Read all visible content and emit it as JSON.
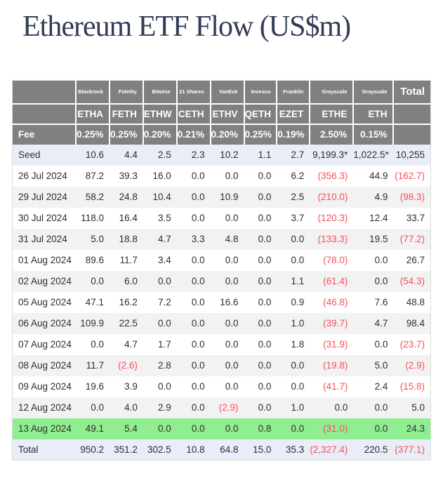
{
  "title": "Ethereum ETF Flow (US$m)",
  "colors": {
    "header_bg": "#808080",
    "header_text": "#ffffff",
    "stripe_row_bg": "#f2f2f2",
    "accent_row_bg": "#e9edf8",
    "highlight_row_bg": "#90ee90",
    "negative_text": "#f4505b",
    "body_text": "#2e2e2e",
    "title_text": "#343b57",
    "table_border": "#dcdcdc"
  },
  "table": {
    "issuer_row": [
      "",
      "Blackrock",
      "Fidelity",
      "Bitwise",
      "21 Shares",
      "VanEck",
      "Invesco",
      "Franklin",
      "Grayscale",
      "Grayscale",
      "Total"
    ],
    "ticker_row": [
      "",
      "ETHA",
      "FETH",
      "ETHW",
      "CETH",
      "ETHV",
      "QETH",
      "EZET",
      "ETHE",
      "ETH",
      ""
    ],
    "fee_row": [
      "Fee",
      "0.25%",
      "0.25%",
      "0.20%",
      "0.21%",
      "0.20%",
      "0.25%",
      "0.19%",
      "2.50%",
      "0.15%",
      ""
    ],
    "rows": [
      {
        "label": "Seed",
        "style": "accent",
        "values": [
          "10.6",
          "4.4",
          "2.5",
          "2.3",
          "10.2",
          "1.1",
          "2.7",
          "9,199.3*",
          "1,022.5*",
          "10,255"
        ]
      },
      {
        "label": "26 Jul 2024",
        "style": "white",
        "values": [
          "87.2",
          "39.3",
          "16.0",
          "0.0",
          "0.0",
          "0.0",
          "6.2",
          "(356.3)",
          "44.9",
          "(162.7)"
        ]
      },
      {
        "label": "29 Jul 2024",
        "style": "stripe",
        "values": [
          "58.2",
          "24.8",
          "10.4",
          "0.0",
          "10.9",
          "0.0",
          "2.5",
          "(210.0)",
          "4.9",
          "(98.3)"
        ]
      },
      {
        "label": "30 Jul 2024",
        "style": "white",
        "values": [
          "118.0",
          "16.4",
          "3.5",
          "0.0",
          "0.0",
          "0.0",
          "3.7",
          "(120.3)",
          "12.4",
          "33.7"
        ]
      },
      {
        "label": "31 Jul 2024",
        "style": "stripe",
        "values": [
          "5.0",
          "18.8",
          "4.7",
          "3.3",
          "4.8",
          "0.0",
          "0.0",
          "(133.3)",
          "19.5",
          "(77.2)"
        ]
      },
      {
        "label": "01 Aug 2024",
        "style": "white",
        "values": [
          "89.6",
          "11.7",
          "3.4",
          "0.0",
          "0.0",
          "0.0",
          "0.0",
          "(78.0)",
          "0.0",
          "26.7"
        ]
      },
      {
        "label": "02 Aug 2024",
        "style": "stripe",
        "values": [
          "0.0",
          "6.0",
          "0.0",
          "0.0",
          "0.0",
          "0.0",
          "1.1",
          "(61.4)",
          "0.0",
          "(54.3)"
        ]
      },
      {
        "label": "05 Aug 2024",
        "style": "white",
        "values": [
          "47.1",
          "16.2",
          "7.2",
          "0.0",
          "16.6",
          "0.0",
          "0.9",
          "(46.8)",
          "7.6",
          "48.8"
        ]
      },
      {
        "label": "06 Aug 2024",
        "style": "stripe",
        "values": [
          "109.9",
          "22.5",
          "0.0",
          "0.0",
          "0.0",
          "0.0",
          "1.0",
          "(39.7)",
          "4.7",
          "98.4"
        ]
      },
      {
        "label": "07 Aug 2024",
        "style": "white",
        "values": [
          "0.0",
          "4.7",
          "1.7",
          "0.0",
          "0.0",
          "0.0",
          "1.8",
          "(31.9)",
          "0.0",
          "(23.7)"
        ]
      },
      {
        "label": "08 Aug 2024",
        "style": "stripe",
        "values": [
          "11.7",
          "(2.6)",
          "2.8",
          "0.0",
          "0.0",
          "0.0",
          "0.0",
          "(19.8)",
          "5.0",
          "(2.9)"
        ]
      },
      {
        "label": "09 Aug 2024",
        "style": "white",
        "values": [
          "19.6",
          "3.9",
          "0.0",
          "0.0",
          "0.0",
          "0.0",
          "0.0",
          "(41.7)",
          "2.4",
          "(15.8)"
        ]
      },
      {
        "label": "12 Aug 2024",
        "style": "stripe",
        "values": [
          "0.0",
          "4.0",
          "2.9",
          "0.0",
          "(2.9)",
          "0.0",
          "1.0",
          "0.0",
          "0.0",
          "5.0"
        ]
      },
      {
        "label": "13 Aug 2024",
        "style": "green",
        "values": [
          "49.1",
          "5.4",
          "0.0",
          "0.0",
          "0.0",
          "0.8",
          "0.0",
          "(31.0)",
          "0.0",
          "24.3"
        ]
      },
      {
        "label": "Total",
        "style": "accent",
        "values": [
          "950.2",
          "351.2",
          "302.5",
          "10.8",
          "64.8",
          "15.0",
          "35.3",
          "(2,327.4)",
          "220.5",
          "(377.1)"
        ]
      }
    ]
  },
  "chart_data": {
    "type": "table",
    "title": "Ethereum ETF Flow (US$m)",
    "columns": [
      {
        "issuer": "Blackrock",
        "ticker": "ETHA",
        "fee": "0.25%"
      },
      {
        "issuer": "Fidelity",
        "ticker": "FETH",
        "fee": "0.25%"
      },
      {
        "issuer": "Bitwise",
        "ticker": "ETHW",
        "fee": "0.20%"
      },
      {
        "issuer": "21 Shares",
        "ticker": "CETH",
        "fee": "0.21%"
      },
      {
        "issuer": "VanEck",
        "ticker": "ETHV",
        "fee": "0.20%"
      },
      {
        "issuer": "Invesco",
        "ticker": "QETH",
        "fee": "0.25%"
      },
      {
        "issuer": "Franklin",
        "ticker": "EZET",
        "fee": "0.19%"
      },
      {
        "issuer": "Grayscale",
        "ticker": "ETHE",
        "fee": "2.50%"
      },
      {
        "issuer": "Grayscale",
        "ticker": "ETH",
        "fee": "0.15%"
      },
      {
        "issuer": "",
        "ticker": "Total",
        "fee": ""
      }
    ],
    "rows": [
      {
        "label": "Seed",
        "values": [
          10.6,
          4.4,
          2.5,
          2.3,
          10.2,
          1.1,
          2.7,
          9199.3,
          1022.5,
          10255
        ]
      },
      {
        "label": "26 Jul 2024",
        "values": [
          87.2,
          39.3,
          16.0,
          0.0,
          0.0,
          0.0,
          6.2,
          -356.3,
          44.9,
          -162.7
        ]
      },
      {
        "label": "29 Jul 2024",
        "values": [
          58.2,
          24.8,
          10.4,
          0.0,
          10.9,
          0.0,
          2.5,
          -210.0,
          4.9,
          -98.3
        ]
      },
      {
        "label": "30 Jul 2024",
        "values": [
          118.0,
          16.4,
          3.5,
          0.0,
          0.0,
          0.0,
          3.7,
          -120.3,
          12.4,
          33.7
        ]
      },
      {
        "label": "31 Jul 2024",
        "values": [
          5.0,
          18.8,
          4.7,
          3.3,
          4.8,
          0.0,
          0.0,
          -133.3,
          19.5,
          -77.2
        ]
      },
      {
        "label": "01 Aug 2024",
        "values": [
          89.6,
          11.7,
          3.4,
          0.0,
          0.0,
          0.0,
          0.0,
          -78.0,
          0.0,
          26.7
        ]
      },
      {
        "label": "02 Aug 2024",
        "values": [
          0.0,
          6.0,
          0.0,
          0.0,
          0.0,
          0.0,
          1.1,
          -61.4,
          0.0,
          -54.3
        ]
      },
      {
        "label": "05 Aug 2024",
        "values": [
          47.1,
          16.2,
          7.2,
          0.0,
          16.6,
          0.0,
          0.9,
          -46.8,
          7.6,
          48.8
        ]
      },
      {
        "label": "06 Aug 2024",
        "values": [
          109.9,
          22.5,
          0.0,
          0.0,
          0.0,
          0.0,
          1.0,
          -39.7,
          4.7,
          98.4
        ]
      },
      {
        "label": "07 Aug 2024",
        "values": [
          0.0,
          4.7,
          1.7,
          0.0,
          0.0,
          0.0,
          1.8,
          -31.9,
          0.0,
          -23.7
        ]
      },
      {
        "label": "08 Aug 2024",
        "values": [
          11.7,
          -2.6,
          2.8,
          0.0,
          0.0,
          0.0,
          0.0,
          -19.8,
          5.0,
          -2.9
        ]
      },
      {
        "label": "09 Aug 2024",
        "values": [
          19.6,
          3.9,
          0.0,
          0.0,
          0.0,
          0.0,
          0.0,
          -41.7,
          2.4,
          -15.8
        ]
      },
      {
        "label": "12 Aug 2024",
        "values": [
          0.0,
          4.0,
          2.9,
          0.0,
          -2.9,
          0.0,
          1.0,
          0.0,
          0.0,
          5.0
        ]
      },
      {
        "label": "13 Aug 2024",
        "values": [
          49.1,
          5.4,
          0.0,
          0.0,
          0.0,
          0.8,
          0.0,
          -31.0,
          0.0,
          24.3
        ]
      },
      {
        "label": "Total",
        "values": [
          950.2,
          351.2,
          302.5,
          10.8,
          64.8,
          15.0,
          35.3,
          -2327.4,
          220.5,
          -377.1
        ]
      }
    ],
    "notes": "Values in parentheses / negative are outflows shown in red. Seed values for ETHE and ETH are marked with an asterisk. Row for 13 Aug 2024 is highlighted green."
  }
}
